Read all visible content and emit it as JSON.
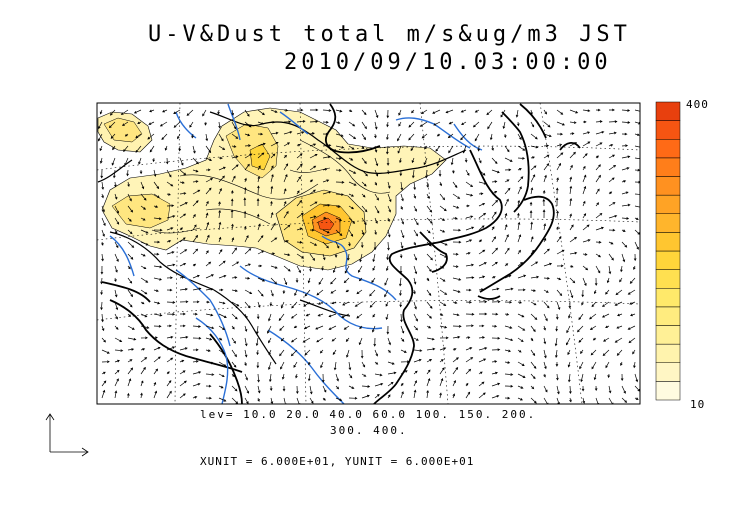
{
  "title": {
    "line1": "U-V&Dust total m/s&ug/m3 JST",
    "line2": "2010/09/10.03:00:00"
  },
  "levels": {
    "line1": "lev= 10.0 20.0 40.0 60.0 100. 150. 200.",
    "line2": "300. 400."
  },
  "units_text": "XUNIT = 6.000E+01, YUNIT = 6.000E+01",
  "colorbar": {
    "max_label": "400",
    "min_label": "10",
    "colors": [
      "#fffbe0",
      "#fff6c4",
      "#fff3ad",
      "#fff096",
      "#ffec7f",
      "#ffe96a",
      "#ffe050",
      "#ffd53a",
      "#ffc630",
      "#ffb52c",
      "#ffa325",
      "#ff9120",
      "#ff7e1a",
      "#ff6a16",
      "#f65512",
      "#e8400e"
    ]
  },
  "colors": {
    "river": "#2a6fd6",
    "coast": "#000000",
    "dust_light": "#fff4b8",
    "dust_mid": "#ffe680",
    "dust_core": "#ff6a1a"
  }
}
